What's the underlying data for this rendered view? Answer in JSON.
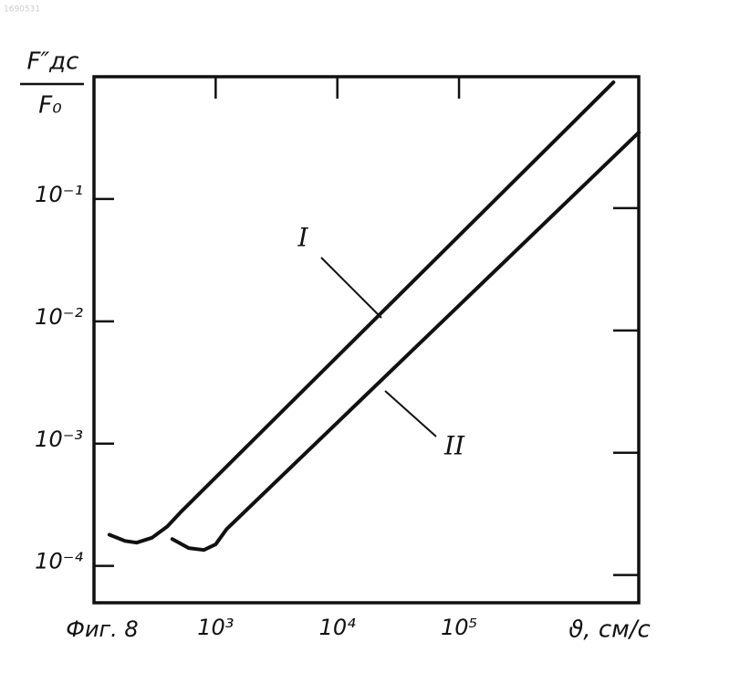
{
  "chart_data": {
    "type": "line",
    "figure_number": "1690531",
    "y_label_top": "F″дс",
    "y_label_bottom": "F₀",
    "caption": "Фиг. 8",
    "x_label": "ϑ, см/с",
    "x_scale": "log",
    "y_scale": "log",
    "xlim": [
      100,
      3000000
    ],
    "ylim": [
      5e-05,
      1
    ],
    "xticks": [
      {
        "value": 1000,
        "label": "10³"
      },
      {
        "value": 10000,
        "label": "10⁴"
      },
      {
        "value": 100000,
        "label": "10⁵"
      }
    ],
    "yticks": [
      {
        "value": 0.1,
        "label": "10⁻¹"
      },
      {
        "value": 0.01,
        "label": "10⁻²"
      },
      {
        "value": 0.001,
        "label": "10⁻³"
      },
      {
        "value": 0.0001,
        "label": "10⁻⁴"
      }
    ],
    "series": [
      {
        "name": "I",
        "color": "#111111",
        "x": [
          134,
          180,
          224,
          300,
          400,
          525,
          1860000
        ],
        "values": [
          0.00018,
          0.00016,
          0.000155,
          0.00017,
          0.00021,
          0.00028,
          0.9
        ]
      },
      {
        "name": "II",
        "color": "#111111",
        "x": [
          440,
          600,
          800,
          1000,
          1230,
          3000000
        ],
        "values": [
          0.000166,
          0.00014,
          0.000135,
          0.00015,
          0.0002,
          0.35
        ]
      }
    ]
  }
}
